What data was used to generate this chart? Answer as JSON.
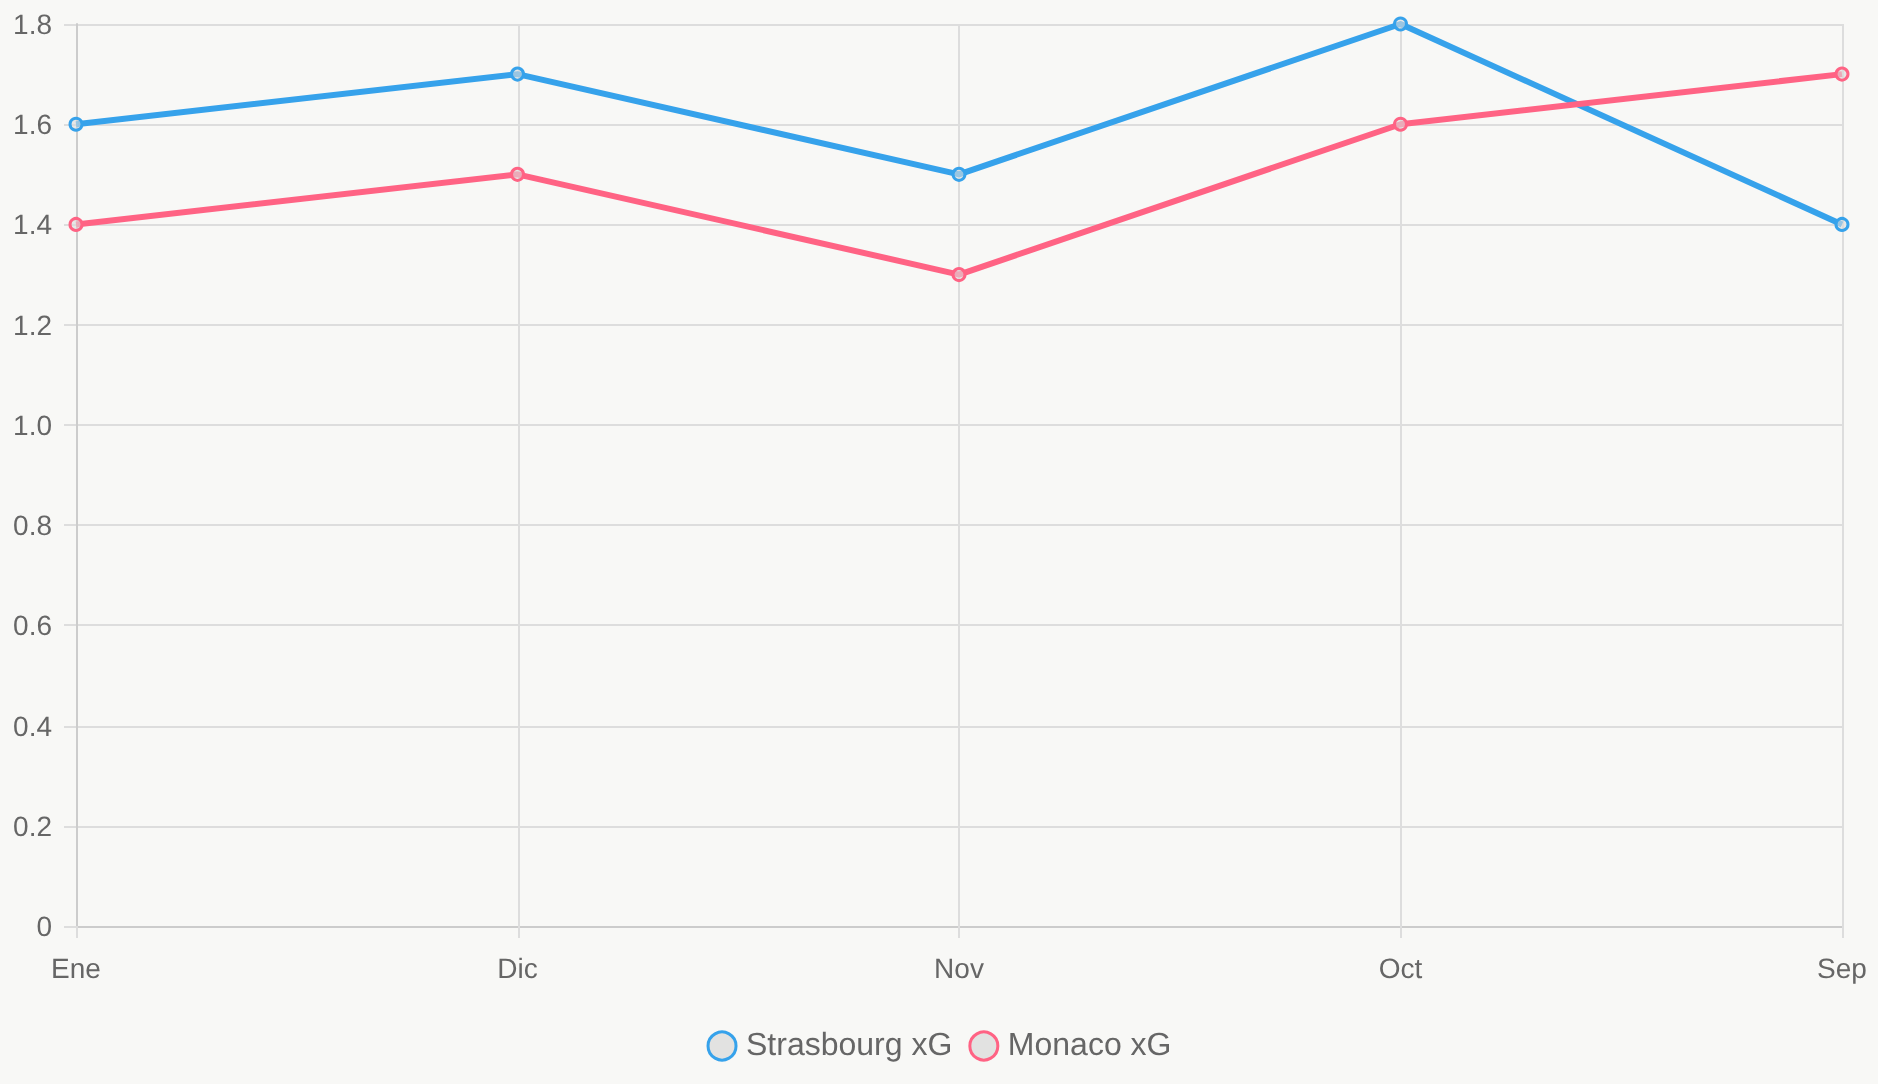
{
  "chart_data": {
    "type": "line",
    "categories": [
      "Ene",
      "Dic",
      "Nov",
      "Oct",
      "Sep"
    ],
    "series": [
      {
        "name": "Strasbourg xG",
        "color": "#36a2eb",
        "values": [
          1.6,
          1.7,
          1.5,
          1.8,
          1.4
        ]
      },
      {
        "name": "Monaco xG",
        "color": "#ff6384",
        "values": [
          1.4,
          1.5,
          1.3,
          1.6,
          1.7
        ]
      }
    ],
    "ylim": [
      0,
      1.8
    ],
    "yticks": [
      0,
      {
        "value": 0.2,
        "label": "0.2"
      },
      {
        "value": 0.4,
        "label": "0.4"
      },
      {
        "value": 0.6,
        "label": "0.6"
      },
      {
        "value": 0.8,
        "label": "0.8"
      },
      {
        "value": 1,
        "label": "1.0"
      },
      {
        "value": 1.2,
        "label": "1.2"
      },
      {
        "value": 1.4,
        "label": "1.4"
      },
      {
        "value": 1.6,
        "label": "1.6"
      },
      {
        "value": 1.8,
        "label": "1.8"
      }
    ],
    "grid": true,
    "legend": "bottom",
    "marker": "circle",
    "line_style": "solid"
  }
}
